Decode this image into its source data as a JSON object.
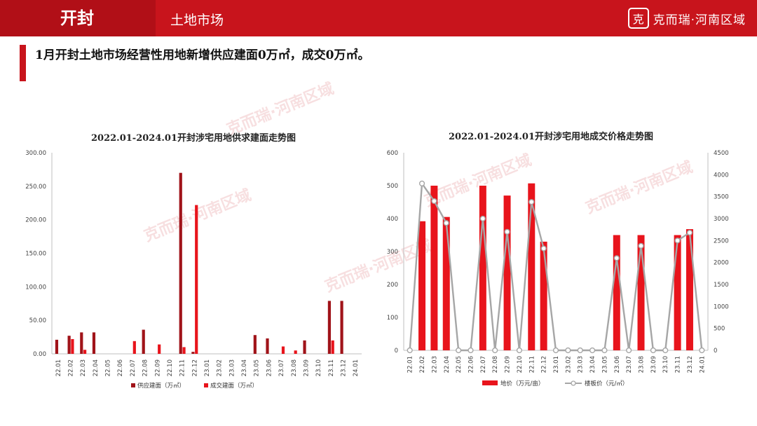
{
  "header": {
    "city": "开封",
    "section": "土地市场",
    "brand_seal": "克",
    "brand_name": "克而瑞·河南区域"
  },
  "headline": "1月开封土地市场经营性用地新增供应建面0万㎡，成交0万㎡。",
  "watermark": "克而瑞·河南区域",
  "colors": {
    "supply": "#a01319",
    "deal": "#e8141c",
    "floor_line": "#a6a6a6",
    "accent": "#c8141c"
  },
  "chart_data": [
    {
      "type": "bar",
      "title": "2022.01-2024.01开封涉宅用地供求建面走势图",
      "categories": [
        "22.01",
        "22.02",
        "22.03",
        "22.04",
        "22.05",
        "22.06",
        "22.07",
        "22.08",
        "22.09",
        "22.10",
        "22.11",
        "22.12",
        "23.01",
        "23.02",
        "23.03",
        "23.04",
        "23.05",
        "23.06",
        "23.07",
        "23.08",
        "23.09",
        "23.10",
        "23.11",
        "23.12",
        "24.01"
      ],
      "ylim": [
        0,
        300
      ],
      "yticks": [
        "0.00",
        "50.00",
        "100.00",
        "150.00",
        "200.00",
        "250.00",
        "300.00"
      ],
      "series": [
        {
          "name": "供应建面（万㎡）",
          "values": [
            21,
            27,
            32,
            32,
            0,
            0,
            0,
            36,
            0,
            0,
            270,
            3,
            0,
            0,
            0,
            0,
            28,
            23,
            0,
            0,
            20,
            0,
            79,
            79,
            0
          ]
        },
        {
          "name": "成交建面（万㎡）",
          "values": [
            0,
            22,
            6,
            0,
            0,
            0,
            19,
            0,
            14,
            0,
            10,
            222,
            0,
            0,
            0,
            0,
            0,
            0,
            11,
            5,
            0,
            0,
            20,
            0,
            0
          ]
        }
      ]
    },
    {
      "type": "bar+line",
      "title": "2022.01-2024.01开封涉宅用地成交价格走势图",
      "categories": [
        "22.01",
        "22.02",
        "22.03",
        "22.04",
        "22.05",
        "22.06",
        "22.07",
        "22.08",
        "22.09",
        "22.10",
        "22.11",
        "22.12",
        "23.01",
        "23.02",
        "23.03",
        "23.04",
        "23.05",
        "23.06",
        "23.07",
        "23.08",
        "23.09",
        "23.10",
        "23.11",
        "23.12",
        "24.01"
      ],
      "ylim_left": [
        0,
        600
      ],
      "yticks_left": [
        "0",
        "100",
        "200",
        "300",
        "400",
        "500",
        "600"
      ],
      "ylim_right": [
        0,
        4500
      ],
      "yticks_right": [
        "0",
        "500",
        "1000",
        "1500",
        "2000",
        "2500",
        "3000",
        "3500",
        "4000",
        "4500"
      ],
      "series": [
        {
          "name": "地价（万元/亩）",
          "axis": "left",
          "type": "bar",
          "values": [
            0,
            392,
            500,
            405,
            0,
            0,
            500,
            0,
            470,
            0,
            507,
            330,
            0,
            0,
            0,
            0,
            0,
            350,
            0,
            350,
            0,
            0,
            350,
            368,
            0
          ]
        },
        {
          "name": "楼板价（元/㎡）",
          "axis": "right",
          "type": "line",
          "values": [
            0,
            3800,
            3400,
            2900,
            0,
            0,
            3000,
            0,
            2700,
            0,
            3380,
            2320,
            0,
            0,
            0,
            0,
            0,
            2100,
            0,
            2380,
            0,
            0,
            2500,
            2680,
            0
          ]
        }
      ]
    }
  ]
}
